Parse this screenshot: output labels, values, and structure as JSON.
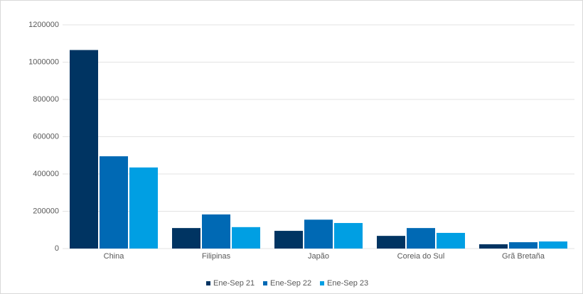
{
  "chart_data": {
    "type": "bar",
    "categories": [
      "China",
      "Filipinas",
      "Japão",
      "Coreia do Sul",
      "Grã Bretaña"
    ],
    "series": [
      {
        "name": "Ene-Sep 21",
        "color": "#003462",
        "values": [
          1065000,
          110000,
          95000,
          68000,
          23000
        ]
      },
      {
        "name": "Ene-Sep 22",
        "color": "#0069b4",
        "values": [
          495000,
          183000,
          155000,
          110000,
          34000
        ]
      },
      {
        "name": "Ene-Sep 23",
        "color": "#009fe3",
        "values": [
          435000,
          115000,
          137000,
          84000,
          38000
        ]
      }
    ],
    "ylim": [
      0,
      1200000
    ],
    "yticks": [
      0,
      200000,
      400000,
      600000,
      800000,
      1000000,
      1200000
    ],
    "grid": true,
    "legend": "bottom"
  }
}
